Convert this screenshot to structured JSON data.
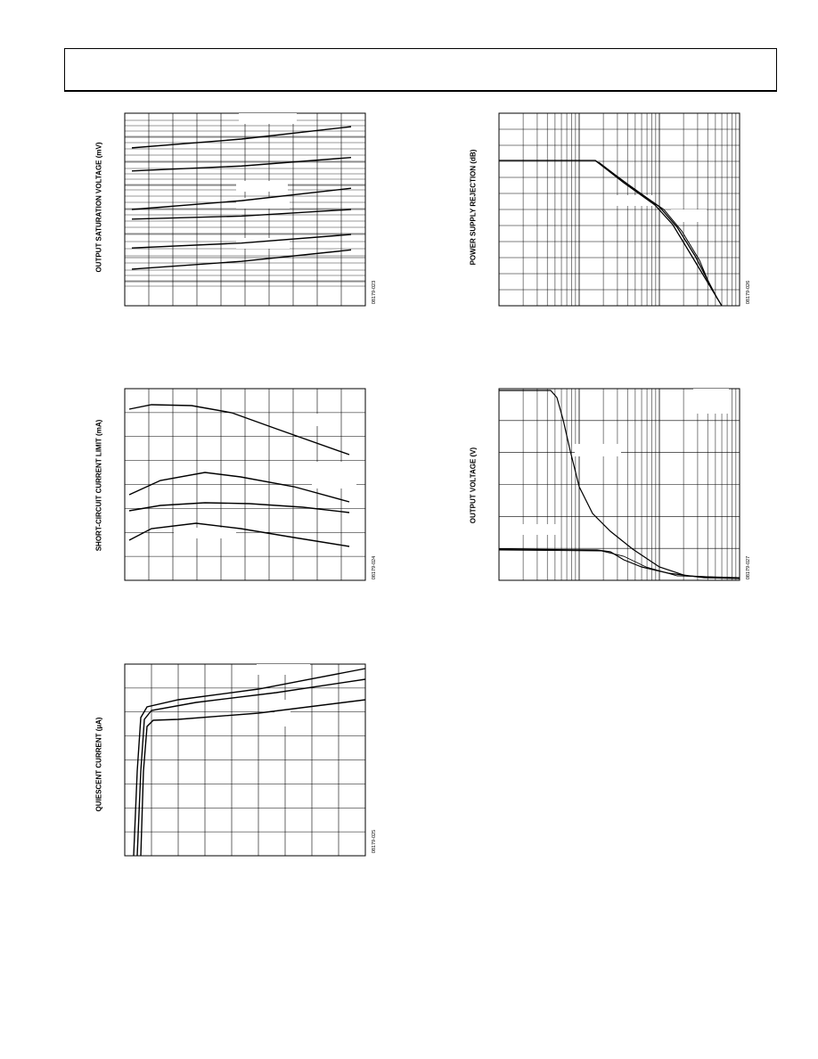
{
  "charts": [
    {
      "id": "c1",
      "ylabel": "OUTPUT SATURATION VOLTAGE (mV)",
      "fig_id": "08179-023"
    },
    {
      "id": "c2",
      "ylabel": "POWER SUPPLY REJECTION (dB)",
      "fig_id": "08179-026"
    },
    {
      "id": "c3",
      "ylabel": "SHORT-CIRCUIT CURRENT LIMIT (mA)",
      "fig_id": "08179-024"
    },
    {
      "id": "c4",
      "ylabel": "OUTPUT VOLTAGE (V)",
      "fig_id": "08179-027"
    },
    {
      "id": "c5",
      "ylabel": "QUIESCENT CURRENT (µA)",
      "fig_id": "08179-025"
    }
  ],
  "chart_data": [
    {
      "type": "line",
      "ylabel": "OUTPUT SATURATION VOLTAGE (mV)",
      "grid": true,
      "series": [
        {
          "x": [
            0,
            1
          ],
          "y": [
            0.82,
            0.93
          ]
        },
        {
          "x": [
            0,
            1
          ],
          "y": [
            0.7,
            0.77
          ]
        },
        {
          "x": [
            0,
            1
          ],
          "y": [
            0.5,
            0.61
          ]
        },
        {
          "x": [
            0,
            1
          ],
          "y": [
            0.45,
            0.5
          ]
        },
        {
          "x": [
            0,
            1
          ],
          "y": [
            0.3,
            0.37
          ]
        },
        {
          "x": [
            0,
            1
          ],
          "y": [
            0.19,
            0.29
          ]
        }
      ]
    },
    {
      "type": "line",
      "ylabel": "POWER SUPPLY REJECTION (dB)",
      "xscale": "log",
      "grid": true
    },
    {
      "type": "line",
      "ylabel": "SHORT-CIRCUIT CURRENT LIMIT (mA)",
      "grid": true
    },
    {
      "type": "line",
      "ylabel": "OUTPUT VOLTAGE (V)",
      "xscale": "log",
      "grid": true
    },
    {
      "type": "line",
      "ylabel": "QUIESCENT CURRENT (µA)",
      "grid": true
    }
  ]
}
